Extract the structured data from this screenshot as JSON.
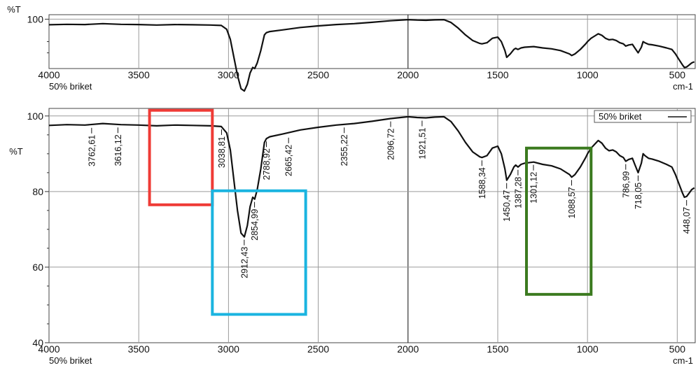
{
  "chart_data": [
    {
      "type": "line",
      "ylabel": "%T",
      "y_ticks": [
        "100"
      ],
      "x_ticks": [
        4000,
        3500,
        3000,
        2500,
        2000,
        1500,
        1000,
        500
      ],
      "xlim": [
        4000,
        400
      ],
      "x_reversed": true,
      "sample_label": "50% briket",
      "unit_label": "cm-1",
      "grid": true,
      "series": [
        {
          "x": [
            4000,
            3900,
            3800,
            3700,
            3600,
            3500,
            3400,
            3300,
            3200,
            3100,
            3040,
            3010,
            2990,
            2970,
            2950,
            2930,
            2912,
            2895,
            2880,
            2865,
            2854,
            2840,
            2820,
            2800,
            2789,
            2770,
            2700,
            2600,
            2500,
            2400,
            2300,
            2200,
            2100,
            2000,
            1950,
            1900,
            1850,
            1800,
            1760,
            1720,
            1680,
            1640,
            1600,
            1588,
            1560,
            1530,
            1500,
            1480,
            1460,
            1450,
            1430,
            1410,
            1400,
            1387,
            1370,
            1350,
            1300,
            1250,
            1200,
            1150,
            1100,
            1088,
            1070,
            1040,
            1010,
            1000,
            980,
            960,
            940,
            920,
            900,
            880,
            860,
            840,
            820,
            800,
            787,
            770,
            750,
            735,
            718,
            700,
            690,
            680,
            660,
            640,
            600,
            560,
            530,
            510,
            490,
            470,
            460,
            448,
            435,
            420,
            405
          ],
          "y": [
            97.5,
            97.7,
            97.6,
            98.0,
            97.7,
            97.6,
            97.4,
            97.6,
            97.5,
            97.4,
            97.2,
            95.5,
            91.0,
            83.0,
            75.0,
            69.0,
            68.0,
            71.0,
            76.0,
            78.5,
            78.0,
            80.5,
            86.0,
            93.0,
            94.0,
            94.5,
            95.2,
            96.3,
            97.0,
            97.6,
            98.0,
            98.6,
            99.3,
            99.8,
            99.6,
            99.5,
            99.7,
            99.8,
            98.5,
            96.0,
            93.0,
            90.5,
            89.2,
            89.0,
            89.5,
            91.5,
            92.0,
            90.0,
            86.0,
            83.0,
            84.5,
            86.5,
            87.0,
            86.5,
            87.2,
            87.5,
            87.8,
            87.2,
            86.8,
            86.0,
            84.5,
            83.8,
            84.5,
            86.5,
            89.0,
            90.0,
            91.5,
            92.5,
            93.5,
            92.8,
            91.5,
            90.8,
            91.0,
            90.5,
            89.5,
            89.0,
            88.0,
            88.5,
            88.8,
            87.0,
            85.0,
            87.5,
            90.0,
            89.5,
            88.8,
            88.6,
            88.0,
            87.2,
            86.5,
            84.5,
            82.0,
            79.5,
            78.5,
            78.7,
            79.5,
            80.5,
            81.0
          ]
        }
      ]
    },
    {
      "type": "line",
      "ylabel": "%T",
      "y_ticks": [
        "100",
        "80",
        "60",
        "40"
      ],
      "ylim": [
        40,
        102
      ],
      "x_ticks": [
        4000,
        3500,
        3000,
        2500,
        2000,
        1500,
        1000,
        500
      ],
      "xlim": [
        4000,
        400
      ],
      "x_reversed": true,
      "sample_label": "50% briket",
      "unit_label": "cm-1",
      "grid": true,
      "legend": {
        "label": "50% briket",
        "placement": "top-right"
      },
      "peak_labels": [
        "3762,61",
        "3616,12",
        "3038,81",
        "2912,43",
        "2854,99",
        "2788,92",
        "2665,42",
        "2355,22",
        "2096,72",
        "1921,51",
        "1588,34",
        "1450,47",
        "1387,28",
        "1301,12",
        "1088,57",
        "786,99",
        "718,05",
        "448,07"
      ],
      "annotations": [
        {
          "shape": "rectangle",
          "color": "#ef3b36",
          "x_range": [
            3440,
            3090
          ],
          "y_range": [
            76.5,
            101.5
          ]
        },
        {
          "shape": "rectangle",
          "color": "#1ab4e0",
          "x_range": [
            3090,
            2570
          ],
          "y_range": [
            47.5,
            80.2
          ]
        },
        {
          "shape": "rectangle",
          "color": "#3b7a1f",
          "x_range": [
            1340,
            980
          ],
          "y_range": [
            52.8,
            91.5
          ]
        }
      ],
      "series": [
        {
          "name": "50% briket",
          "x": [
            4000,
            3900,
            3800,
            3700,
            3600,
            3500,
            3400,
            3300,
            3200,
            3100,
            3040,
            3010,
            2990,
            2970,
            2950,
            2930,
            2912,
            2895,
            2880,
            2865,
            2854,
            2840,
            2820,
            2800,
            2789,
            2770,
            2700,
            2600,
            2500,
            2400,
            2300,
            2200,
            2100,
            2000,
            1950,
            1900,
            1850,
            1800,
            1760,
            1720,
            1680,
            1640,
            1600,
            1588,
            1560,
            1530,
            1500,
            1480,
            1460,
            1450,
            1430,
            1410,
            1400,
            1387,
            1370,
            1350,
            1300,
            1250,
            1200,
            1150,
            1100,
            1088,
            1070,
            1040,
            1010,
            1000,
            980,
            960,
            940,
            920,
            900,
            880,
            860,
            840,
            820,
            800,
            787,
            770,
            750,
            735,
            718,
            700,
            690,
            680,
            660,
            640,
            600,
            560,
            530,
            510,
            490,
            470,
            460,
            448,
            435,
            420,
            405
          ],
          "y": [
            97.5,
            97.7,
            97.6,
            98.0,
            97.7,
            97.6,
            97.4,
            97.6,
            97.5,
            97.4,
            97.2,
            95.5,
            91.0,
            83.0,
            75.0,
            69.0,
            68.0,
            71.0,
            76.0,
            78.5,
            78.0,
            80.5,
            86.0,
            93.0,
            94.0,
            94.5,
            95.2,
            96.3,
            97.0,
            97.6,
            98.0,
            98.6,
            99.3,
            99.8,
            99.6,
            99.5,
            99.7,
            99.8,
            98.5,
            96.0,
            93.0,
            90.5,
            89.2,
            89.0,
            89.5,
            91.5,
            92.0,
            90.0,
            86.0,
            83.0,
            84.5,
            86.5,
            87.0,
            86.5,
            87.2,
            87.5,
            87.8,
            87.2,
            86.8,
            86.0,
            84.5,
            83.8,
            84.5,
            86.5,
            89.0,
            90.0,
            91.5,
            92.5,
            93.5,
            92.8,
            91.5,
            90.8,
            91.0,
            90.5,
            89.5,
            89.0,
            88.0,
            88.5,
            88.8,
            87.0,
            85.0,
            87.5,
            90.0,
            89.5,
            88.8,
            88.6,
            88.0,
            87.2,
            86.5,
            84.5,
            82.0,
            79.5,
            78.5,
            78.7,
            79.5,
            80.5,
            81.0
          ]
        }
      ]
    }
  ]
}
